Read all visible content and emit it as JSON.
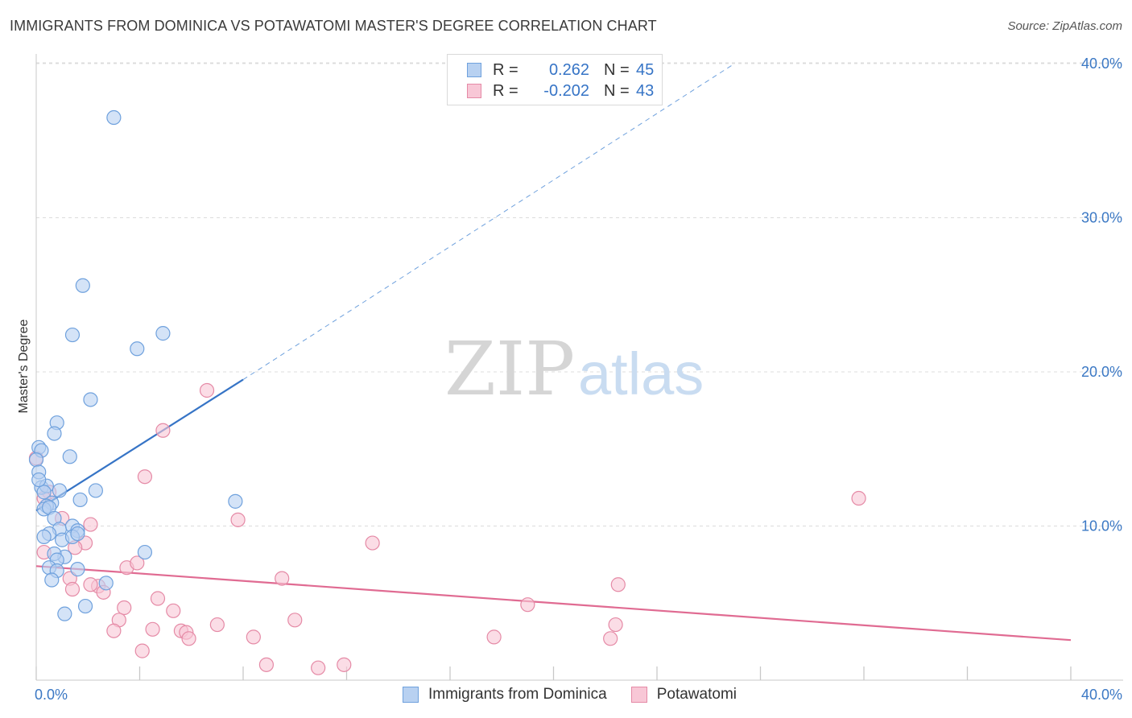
{
  "title": "IMMIGRANTS FROM DOMINICA VS POTAWATOMI MASTER'S DEGREE CORRELATION CHART",
  "source": "Source: ZipAtlas.com",
  "watermark": {
    "zip": "ZIP",
    "atlas": "atlas"
  },
  "legend": {
    "rows": [
      {
        "r_label": "R =",
        "r_value": "0.262",
        "n_label": "N =",
        "n_value": "45",
        "color": "#6fa1dd",
        "fill": "#b8d1f1"
      },
      {
        "r_label": "R =",
        "r_value": "-0.202",
        "n_label": "N =",
        "n_value": "43",
        "color": "#e58aa6",
        "fill": "#f8c7d6"
      }
    ]
  },
  "bottom_legend": [
    {
      "label": "Immigrants from Dominica",
      "color": "#6fa1dd",
      "fill": "#b8d1f1"
    },
    {
      "label": "Potawatomi",
      "color": "#e58aa6",
      "fill": "#f8c7d6"
    }
  ],
  "chart_data": {
    "type": "scatter",
    "title": "IMMIGRANTS FROM DOMINICA VS POTAWATOMI MASTER'S DEGREE CORRELATION CHART",
    "xlabel": "",
    "ylabel": "Master's Degree",
    "xlim": [
      0,
      40
    ],
    "ylim": [
      0,
      40
    ],
    "x_tick_labels": [
      "0.0%",
      "40.0%"
    ],
    "y_tick_labels": [
      "10.0%",
      "20.0%",
      "30.0%",
      "40.0%"
    ],
    "y_ticks": [
      10,
      20,
      30,
      40
    ],
    "grid": true,
    "series": [
      {
        "name": "Immigrants from Dominica",
        "color": "#3674c6",
        "point_color": "#6fa1dd",
        "point_fill": "#b8d1f1",
        "trend": {
          "x": [
            0,
            8
          ],
          "y": [
            11.0,
            19.5
          ],
          "dashed_to": [
            27,
            40
          ]
        },
        "points": [
          [
            3.0,
            36.5
          ],
          [
            1.8,
            25.6
          ],
          [
            1.4,
            22.4
          ],
          [
            3.9,
            21.5
          ],
          [
            4.9,
            22.5
          ],
          [
            2.1,
            18.2
          ],
          [
            0.8,
            16.7
          ],
          [
            0.7,
            16.0
          ],
          [
            0.1,
            15.1
          ],
          [
            0.2,
            14.9
          ],
          [
            0.0,
            14.3
          ],
          [
            1.3,
            14.5
          ],
          [
            0.1,
            13.5
          ],
          [
            0.2,
            12.5
          ],
          [
            0.4,
            12.6
          ],
          [
            0.3,
            12.2
          ],
          [
            0.6,
            11.5
          ],
          [
            0.9,
            12.3
          ],
          [
            2.3,
            12.3
          ],
          [
            0.4,
            11.3
          ],
          [
            0.3,
            11.1
          ],
          [
            0.5,
            11.2
          ],
          [
            1.7,
            11.7
          ],
          [
            7.7,
            11.6
          ],
          [
            0.7,
            10.5
          ],
          [
            0.9,
            9.8
          ],
          [
            1.4,
            10.0
          ],
          [
            0.5,
            9.5
          ],
          [
            1.6,
            9.7
          ],
          [
            1.0,
            9.1
          ],
          [
            0.3,
            9.3
          ],
          [
            1.4,
            9.3
          ],
          [
            1.1,
            8.0
          ],
          [
            0.7,
            8.2
          ],
          [
            0.8,
            7.8
          ],
          [
            4.2,
            8.3
          ],
          [
            0.5,
            7.3
          ],
          [
            0.8,
            7.1
          ],
          [
            1.6,
            7.2
          ],
          [
            0.6,
            6.5
          ],
          [
            2.7,
            6.3
          ],
          [
            1.1,
            4.3
          ],
          [
            1.9,
            4.8
          ],
          [
            0.1,
            13.0
          ],
          [
            1.6,
            9.5
          ]
        ]
      },
      {
        "name": "Potawatomi",
        "color": "#e06b92",
        "point_color": "#e58aa6",
        "point_fill": "#f8c7d6",
        "trend": {
          "x": [
            0,
            40
          ],
          "y": [
            7.4,
            2.6
          ]
        },
        "points": [
          [
            0.0,
            14.4
          ],
          [
            6.6,
            18.8
          ],
          [
            4.9,
            16.2
          ],
          [
            4.2,
            13.2
          ],
          [
            0.5,
            12.2
          ],
          [
            0.3,
            11.8
          ],
          [
            31.8,
            11.8
          ],
          [
            1.0,
            10.5
          ],
          [
            2.1,
            10.1
          ],
          [
            7.8,
            10.4
          ],
          [
            13.0,
            8.9
          ],
          [
            1.9,
            8.9
          ],
          [
            1.5,
            8.6
          ],
          [
            3.5,
            7.3
          ],
          [
            3.9,
            7.6
          ],
          [
            9.5,
            6.6
          ],
          [
            1.3,
            6.6
          ],
          [
            2.4,
            6.1
          ],
          [
            1.4,
            5.9
          ],
          [
            22.5,
            6.2
          ],
          [
            2.6,
            5.7
          ],
          [
            4.7,
            5.3
          ],
          [
            3.4,
            4.7
          ],
          [
            5.3,
            4.5
          ],
          [
            19.0,
            4.9
          ],
          [
            3.2,
            3.9
          ],
          [
            3.0,
            3.2
          ],
          [
            4.5,
            3.3
          ],
          [
            5.6,
            3.2
          ],
          [
            5.8,
            3.1
          ],
          [
            7.0,
            3.6
          ],
          [
            10.0,
            3.9
          ],
          [
            22.4,
            3.6
          ],
          [
            5.9,
            2.7
          ],
          [
            8.4,
            2.8
          ],
          [
            17.7,
            2.8
          ],
          [
            22.2,
            2.7
          ],
          [
            4.1,
            1.9
          ],
          [
            8.9,
            1.0
          ],
          [
            10.9,
            0.8
          ],
          [
            11.9,
            1.0
          ],
          [
            0.3,
            8.3
          ],
          [
            2.1,
            6.2
          ]
        ]
      }
    ]
  }
}
